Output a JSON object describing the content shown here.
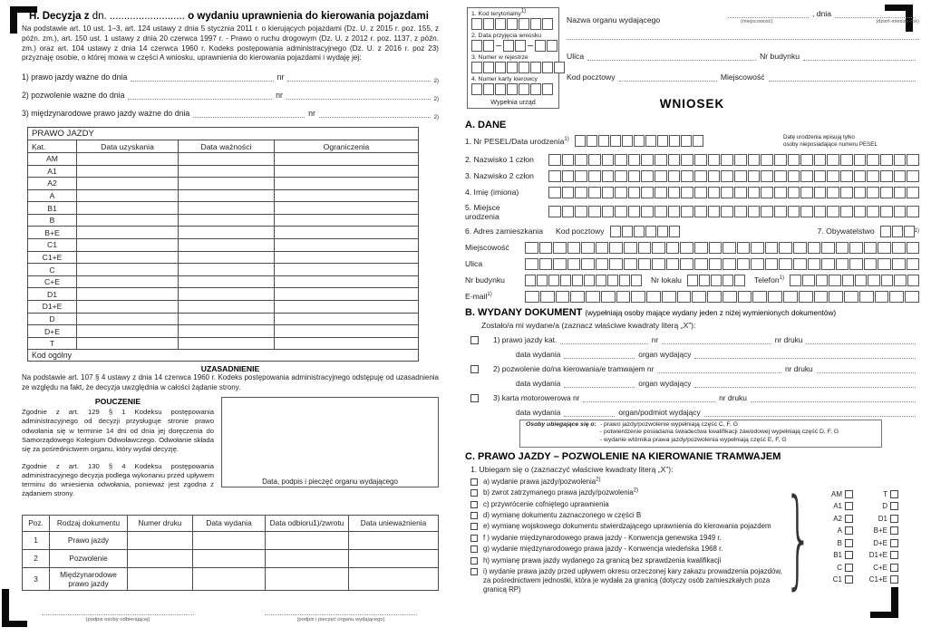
{
  "left_page": {
    "heading": {
      "bold_prefix": "H. Decyzja z",
      "regular_mid": "dn. ..........................",
      "bold_suffix": "o wydaniu uprawnienia do kierowania pojazdami"
    },
    "intro": "Na podstawie art. 10 ust. 1–3,  art. 124 ustawy z dnia 5 stycznia 2011 r. o kierujących pojazdami (Dz. U. z 2015 r. poz. 155, z późn. zm.), art. 150 ust. 1 ustawy z dnia 20 czerwca 1997 r. - Prawo o ruchu drogowym (Dz. U.  z 2012 r. poz. 1137, z późn. zm.) oraz art. 104 ustawy z dnia 14 czerwca 1960 r. Kodeks postępowania administracyjnego (Dz. U. z 2016 r. poz 23) przyznaję osobie, o której mowa w części A wniosku, uprawnienia do kierowania pojazdami i wydaję jej:",
    "issue_lines": [
      {
        "label": "1) prawo jazdy ważne do dnia",
        "nr_label": "nr",
        "fn": "2)"
      },
      {
        "label": "2) pozwolenie ważne do dnia",
        "nr_label": "nr",
        "fn": "2)"
      },
      {
        "label": "3) międzynarodowe prawo jazdy ważne do dnia",
        "nr_label": "nr",
        "fn": "2)"
      }
    ],
    "license_table": {
      "title": "PRAWO JAZDY",
      "headers": [
        "Kat.",
        "Data uzyskania",
        "Data ważności",
        "Ograniczenia"
      ],
      "categories": [
        "AM",
        "A1",
        "A2",
        "A",
        "B1",
        "B",
        "B+E",
        "C1",
        "C1+E",
        "C",
        "C+E",
        "D1",
        "D1+E",
        "D",
        "D+E",
        "T"
      ],
      "footer": "Kod ogólny"
    },
    "uzasadnienie": {
      "title": "UZASADNIENIE",
      "text": "Na podstawie art. 107 § 4 ustawy z dnia 14 czerwca 1960 r. Kodeks postępowania administracyjnego odstępuję od uzasadnienia ze względu na fakt, że decyzja uwzględnia w całości żądanie strony."
    },
    "pouczenie": {
      "title": "POUCZENIE",
      "p1": "Zgodnie z art. 129 § 1 Kodeksu postępowania administracyjnego od decyzji przysługuje stronie prawo odwołania się w terminie 14 dni od dnia jej doręczenia do Samorządowego Kolegium Odwoławczego. Odwołanie składa się za pośrednictwem organu, który wydał decyzję.",
      "p2": "Zgodnie z art. 130 § 4 Kodeksu postępowania administracyjnego decyzja podlega wykonaniu przed upływem terminu do wniesienia odwołania, ponieważ jest zgodna z żądaniem strony."
    },
    "stamp_caption": "Data, podpis i pieczęć organu wydającego",
    "documents_table": {
      "headers": [
        "Poz.",
        "Rodzaj dokumentu",
        "Numer druku",
        "Data wydania",
        "Data odbioru1)/zwrotu",
        "Data unieważnienia"
      ],
      "rows": [
        {
          "poz": "1",
          "doc": "Prawo jazdy"
        },
        {
          "poz": "2",
          "doc": "Pozwolenie"
        },
        {
          "poz": "3",
          "doc": "Międzynarodowe prawo jazdy"
        }
      ]
    },
    "signature_left": "(podpis osoby odbierającej)",
    "signature_right": "(podpis i pieczęć organu wydającego)"
  },
  "right_page": {
    "office_box": {
      "f1_label": "1. Kod terytorialny",
      "f1_fn": "1)",
      "f1_boxes": 7,
      "f2_label": "2. Data przyjęcia wniosku",
      "f2_groups": [
        2,
        2,
        2
      ],
      "f3_label": "3. Numer w rejestrze",
      "f3_boxes": 8,
      "f4_label": "4. Numer karty kierowcy",
      "f4_boxes": 7,
      "caption": "Wypełnia urząd"
    },
    "header": {
      "org_label": "Nazwa organu wydającego",
      "dnia": ", dnia",
      "place_hint": "(miejscowość)",
      "date_hint": "(dzień-miesiąc-rok)",
      "ulica": "Ulica",
      "nr_budynku": "Nr budynku",
      "kod_pocztowy": "Kod pocztowy",
      "miejscowosc": "Miejscowość",
      "title": "WNIOSEK"
    },
    "section_a": {
      "title": "A. DANE",
      "pesel_label": "1. Nr PESEL/Data urodzenia",
      "pesel_fn": "1)",
      "pesel_boxes": 11,
      "pesel_note_1": "Datę urodzenia wpisują tylko",
      "pesel_note_2": "osoby nieposiadające numeru PESEL",
      "row2_label": "2. Nazwisko 1 człon",
      "row2_boxes": 28,
      "row3_label": "3. Nazwisko 2 człon",
      "row3_boxes": 28,
      "row4_label": "4. Imię (imiona)",
      "row4_boxes": 28,
      "row5_label_1": "5. Miejsce",
      "row5_label_2": "urodzenia",
      "row5_boxes": 28,
      "row6_label": "6. Adres zamieszkania",
      "kod_pocztowy_label": "Kod pocztowy",
      "kod_boxes": 6,
      "obywatelstwo_label": "7. Obywatelstwo",
      "obywatelstwo_boxes": 3,
      "obywatelstwo_fn": "1)",
      "miejscowosc_label": "Miejscowość",
      "miejscowosc_boxes": 28,
      "ulica_label": "Ulica",
      "ulica_boxes": 28,
      "nr_budynku_label": "Nr budynku",
      "nr_budynku_boxes": 10,
      "nr_lokalu_label": "Nr lokalu",
      "nr_lokalu_boxes": 5,
      "telefon_label": "Telefon",
      "telefon_fn": "1)",
      "telefon_boxes": 10,
      "email_label": "E-mail",
      "email_fn": "1)",
      "email_boxes": 26
    },
    "section_b": {
      "title": "B. WYDANY DOKUMENT",
      "title_note": "(wypełniają osoby mające wydany jeden z niżej wymienionych dokumentów)",
      "intro": "Zostało/a mi wydane/a (zaznacz właściwe kwadraty literą „X”):",
      "item1_l1a": "1) prawo jazdy kat.",
      "item1_l1b": "nr",
      "item1_l1c": "nr druku",
      "item1_l2a": "data wydania",
      "item1_l2b": "organ wydający",
      "item2_l1a": "2) pozwolenie do/na kierowania/e tramwajem nr",
      "item2_l1c": "nr druku",
      "item2_l2a": "data wydania",
      "item2_l2b": "organ wydający",
      "item3_l1a": "3) karta motorowerowa nr",
      "item3_l1c": "nr druku",
      "item3_l2a": "data wydania",
      "item3_l2b": "organ/podmiot wydający",
      "note_label": "Osoby ubiegające się o:",
      "note_lines": [
        "- prawo jazdy/pozwolenie wypełniają część C, F, G",
        "- potwierdzenie posiadania świadectwa kwalifikacji zawodowej wypełniają część D, F, G",
        "- wydanie wtórnika prawa jazdy/pozwolenia wypełniają część E, F, G"
      ]
    },
    "section_c": {
      "title": "C. PRAWO JAZDY – POZWOLENIE NA KIEROWANIE TRAMWAJEM",
      "intro": "1. Ubiegam się o (zaznaczyć właściwe kwadraty literą „X”):",
      "options": [
        {
          "text": "a) wydanie prawa jazdy/pozwolenia",
          "fn": "2)"
        },
        {
          "text": "b) zwrot zatrzymanego prawa jazdy/pozwolenia",
          "fn": "2)"
        },
        {
          "text": "c) przywrócenie cofniętego uprawnienia"
        },
        {
          "text": "d) wymianę dokumentu zaznaczonego w części B"
        },
        {
          "text": "e) wymianę wojskowego dokumentu stwierdzającego uprawnienia do kierowania pojazdem"
        },
        {
          "text": "f ) wydanie międzynarodowego prawa jazdy - Konwencja genewska 1949 r."
        },
        {
          "text": "g) wydanie międzynarodowego prawa jazdy - Konwencja wiedeńska 1968 r."
        },
        {
          "text": "h) wymianę prawa jazdy wydanego za granicą bez sprawdzenia kwalifikacji"
        },
        {
          "text": "i) wydanie prawa jazdy przed upływem okresu orzeczonej kary zakazu prowadzenia pojazdów, za pośrednictwem jednostki, która je wydała za granicą (dotyczy osób zamieszkałych poza granicą RP)"
        }
      ],
      "cat_col1": [
        "AM",
        "A1",
        "A2",
        "A",
        "B",
        "B1",
        "C",
        "C1"
      ],
      "cat_col2": [
        "T",
        "D",
        "D1",
        "B+E",
        "D+E",
        "D1+E",
        "C+E",
        "C1+E"
      ]
    }
  }
}
